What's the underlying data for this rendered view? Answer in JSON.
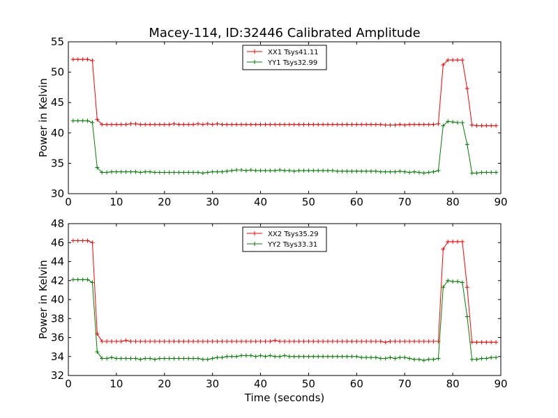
{
  "chart_data": [
    {
      "type": "line",
      "title": "Macey-114, ID:32446 Calibrated Amplitude",
      "xlabel": "",
      "ylabel": "Power in Kelvin",
      "xlim": [
        0,
        90
      ],
      "ylim": [
        30,
        55
      ],
      "xticks": [
        0,
        10,
        20,
        30,
        40,
        50,
        60,
        70,
        80,
        90
      ],
      "yticks": [
        30,
        35,
        40,
        45,
        50,
        55
      ],
      "grid": false,
      "legend_position": "top-center",
      "x": [
        1,
        2,
        3,
        4,
        5,
        6,
        7,
        8,
        9,
        10,
        11,
        12,
        13,
        14,
        15,
        16,
        17,
        18,
        19,
        20,
        21,
        22,
        23,
        24,
        25,
        26,
        27,
        28,
        29,
        30,
        31,
        32,
        33,
        34,
        35,
        36,
        37,
        38,
        39,
        40,
        41,
        42,
        43,
        44,
        45,
        46,
        47,
        48,
        49,
        50,
        51,
        52,
        53,
        54,
        55,
        56,
        57,
        58,
        59,
        60,
        61,
        62,
        63,
        64,
        65,
        66,
        67,
        68,
        69,
        70,
        71,
        72,
        73,
        74,
        75,
        76,
        77,
        78,
        79,
        80,
        81,
        82,
        83,
        84,
        85,
        86,
        87,
        88,
        89
      ],
      "series": [
        {
          "name": "XX1 Tsys41.11",
          "color": "#ff0000",
          "values": [
            52.1,
            52.1,
            52.1,
            52.1,
            51.9,
            42.2,
            41.4,
            41.4,
            41.4,
            41.4,
            41.4,
            41.4,
            41.5,
            41.5,
            41.4,
            41.4,
            41.4,
            41.4,
            41.4,
            41.4,
            41.4,
            41.5,
            41.4,
            41.4,
            41.4,
            41.4,
            41.5,
            41.4,
            41.5,
            41.4,
            41.5,
            41.4,
            41.4,
            41.4,
            41.4,
            41.4,
            41.4,
            41.4,
            41.4,
            41.4,
            41.4,
            41.4,
            41.4,
            41.4,
            41.4,
            41.4,
            41.4,
            41.4,
            41.4,
            41.4,
            41.4,
            41.4,
            41.4,
            41.4,
            41.4,
            41.4,
            41.4,
            41.4,
            41.4,
            41.4,
            41.4,
            41.4,
            41.4,
            41.4,
            41.4,
            41.3,
            41.3,
            41.3,
            41.4,
            41.3,
            41.4,
            41.4,
            41.4,
            41.4,
            41.4,
            41.4,
            41.5,
            51.2,
            52.0,
            52.0,
            52.0,
            52.0,
            47.3,
            41.3,
            41.2,
            41.2,
            41.2,
            41.2,
            41.2
          ]
        },
        {
          "name": "YY1 Tsys32.99",
          "color": "#008000",
          "values": [
            42.0,
            42.0,
            42.0,
            42.0,
            41.7,
            34.3,
            33.5,
            33.5,
            33.6,
            33.6,
            33.6,
            33.6,
            33.6,
            33.6,
            33.5,
            33.6,
            33.6,
            33.5,
            33.5,
            33.5,
            33.5,
            33.5,
            33.5,
            33.5,
            33.5,
            33.5,
            33.5,
            33.4,
            33.5,
            33.6,
            33.6,
            33.6,
            33.7,
            33.8,
            33.9,
            33.9,
            33.8,
            33.9,
            33.8,
            33.8,
            33.8,
            33.8,
            33.8,
            33.9,
            33.8,
            33.8,
            33.7,
            33.8,
            33.8,
            33.8,
            33.8,
            33.8,
            33.8,
            33.8,
            33.8,
            33.7,
            33.7,
            33.7,
            33.7,
            33.7,
            33.7,
            33.7,
            33.7,
            33.7,
            33.6,
            33.6,
            33.6,
            33.6,
            33.7,
            33.6,
            33.5,
            33.6,
            33.5,
            33.4,
            33.5,
            33.6,
            33.8,
            41.2,
            41.9,
            41.8,
            41.7,
            41.7,
            38.1,
            33.4,
            33.4,
            33.5,
            33.5,
            33.5,
            33.5
          ]
        }
      ]
    },
    {
      "type": "line",
      "title": "",
      "xlabel": "Time (seconds)",
      "ylabel": "Power in Kelvin",
      "xlim": [
        0,
        90
      ],
      "ylim": [
        32,
        48
      ],
      "xticks": [
        0,
        10,
        20,
        30,
        40,
        50,
        60,
        70,
        80,
        90
      ],
      "yticks": [
        32,
        34,
        36,
        38,
        40,
        42,
        44,
        46,
        48
      ],
      "grid": false,
      "legend_position": "top-center",
      "x": [
        1,
        2,
        3,
        4,
        5,
        6,
        7,
        8,
        9,
        10,
        11,
        12,
        13,
        14,
        15,
        16,
        17,
        18,
        19,
        20,
        21,
        22,
        23,
        24,
        25,
        26,
        27,
        28,
        29,
        30,
        31,
        32,
        33,
        34,
        35,
        36,
        37,
        38,
        39,
        40,
        41,
        42,
        43,
        44,
        45,
        46,
        47,
        48,
        49,
        50,
        51,
        52,
        53,
        54,
        55,
        56,
        57,
        58,
        59,
        60,
        61,
        62,
        63,
        64,
        65,
        66,
        67,
        68,
        69,
        70,
        71,
        72,
        73,
        74,
        75,
        76,
        77,
        78,
        79,
        80,
        81,
        82,
        83,
        84,
        85,
        86,
        87,
        88,
        89
      ],
      "series": [
        {
          "name": "XX2 Tsys35.29",
          "color": "#ff0000",
          "values": [
            46.2,
            46.2,
            46.2,
            46.2,
            46.0,
            36.4,
            35.6,
            35.6,
            35.6,
            35.6,
            35.6,
            35.7,
            35.6,
            35.6,
            35.6,
            35.6,
            35.6,
            35.6,
            35.6,
            35.6,
            35.6,
            35.6,
            35.6,
            35.6,
            35.6,
            35.6,
            35.6,
            35.6,
            35.6,
            35.6,
            35.6,
            35.6,
            35.6,
            35.6,
            35.6,
            35.6,
            35.6,
            35.6,
            35.6,
            35.6,
            35.6,
            35.6,
            35.7,
            35.6,
            35.6,
            35.6,
            35.6,
            35.6,
            35.6,
            35.6,
            35.6,
            35.6,
            35.6,
            35.6,
            35.6,
            35.6,
            35.6,
            35.6,
            35.6,
            35.6,
            35.6,
            35.6,
            35.6,
            35.6,
            35.6,
            35.5,
            35.6,
            35.6,
            35.6,
            35.6,
            35.6,
            35.6,
            35.6,
            35.6,
            35.6,
            35.6,
            35.6,
            45.3,
            46.1,
            46.1,
            46.1,
            46.1,
            41.3,
            35.5,
            35.5,
            35.5,
            35.5,
            35.5,
            35.5
          ]
        },
        {
          "name": "YY2 Tsys33.31",
          "color": "#008000",
          "values": [
            42.1,
            42.1,
            42.1,
            42.1,
            41.8,
            34.5,
            33.8,
            33.8,
            33.9,
            33.8,
            33.8,
            33.8,
            33.8,
            33.8,
            33.7,
            33.8,
            33.8,
            33.7,
            33.8,
            33.8,
            33.8,
            33.8,
            33.8,
            33.8,
            33.8,
            33.8,
            33.8,
            33.7,
            33.7,
            33.8,
            33.9,
            33.9,
            34.0,
            34.0,
            34.0,
            34.1,
            34.1,
            34.1,
            34.0,
            34.1,
            34.0,
            34.1,
            34.0,
            34.0,
            34.1,
            34.0,
            34.0,
            34.0,
            34.0,
            34.0,
            34.0,
            34.0,
            34.0,
            34.0,
            34.0,
            34.0,
            34.0,
            34.0,
            34.0,
            34.0,
            33.9,
            33.9,
            33.9,
            33.9,
            33.8,
            33.8,
            33.9,
            33.8,
            33.9,
            33.9,
            33.8,
            33.7,
            33.7,
            33.6,
            33.7,
            33.7,
            33.8,
            41.3,
            42.0,
            41.9,
            41.9,
            41.8,
            38.2,
            33.7,
            33.7,
            33.8,
            33.8,
            33.9,
            33.9
          ]
        }
      ]
    }
  ]
}
